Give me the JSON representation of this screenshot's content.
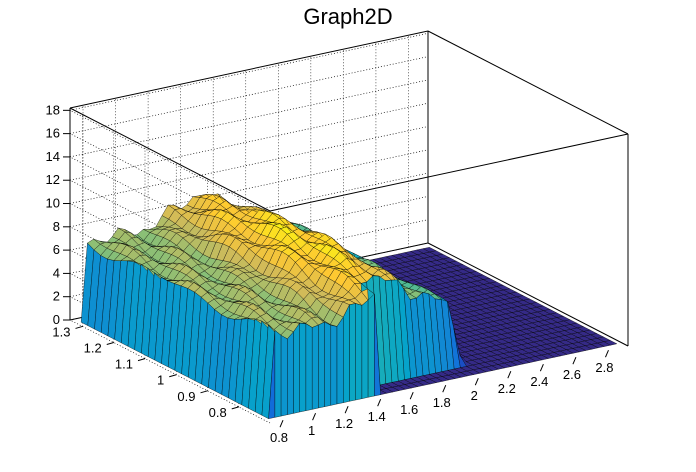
{
  "chart_data": {
    "type": "surface3d",
    "title": "Graph2D",
    "xlabel": "",
    "ylabel": "",
    "zlabel": "",
    "x_ticks": [
      "0.8",
      "1",
      "1.2",
      "1.4",
      "1.6",
      "1.8",
      "2",
      "2.2",
      "2.4",
      "2.6",
      "2.8"
    ],
    "y_ticks": [
      "0.8",
      "0.9",
      "1",
      "1.1",
      "1.2",
      "1.3"
    ],
    "z_ticks": [
      "0",
      "2",
      "4",
      "6",
      "8",
      "10",
      "12",
      "14",
      "16",
      "18"
    ],
    "xlim": [
      0.72,
      2.92
    ],
    "ylim": [
      0.7,
      1.34
    ],
    "zlim": [
      0,
      18.2
    ],
    "grid": "dotted",
    "palette": [
      "#352a87",
      "#0f5cdd",
      "#1481d6",
      "#06a4ca",
      "#2eb7a4",
      "#87bf77",
      "#d1bb59",
      "#fec832",
      "#f9fb0e"
    ],
    "surface": {
      "description_points": [
        {
          "x": 0.75,
          "y": 1.32,
          "z": 0
        },
        {
          "x": 0.8,
          "y": 1.3,
          "z": 7.2
        },
        {
          "x": 1.0,
          "y": 1.3,
          "z": 7.8
        },
        {
          "x": 1.2,
          "y": 1.3,
          "z": 8.4
        },
        {
          "x": 1.4,
          "y": 1.3,
          "z": 8.7
        },
        {
          "x": 1.6,
          "y": 1.3,
          "z": 8.2
        },
        {
          "x": 1.8,
          "y": 1.3,
          "z": 7.0
        },
        {
          "x": 1.9,
          "y": 1.3,
          "z": 5.5
        },
        {
          "x": 2.0,
          "y": 1.3,
          "z": 0.3
        },
        {
          "x": 1.0,
          "y": 1.0,
          "z": 9.4
        },
        {
          "x": 1.3,
          "y": 1.0,
          "z": 10.2
        },
        {
          "x": 1.5,
          "y": 0.8,
          "z": 0
        },
        {
          "x": 2.8,
          "y": 0.8,
          "z": 0
        }
      ]
    }
  }
}
